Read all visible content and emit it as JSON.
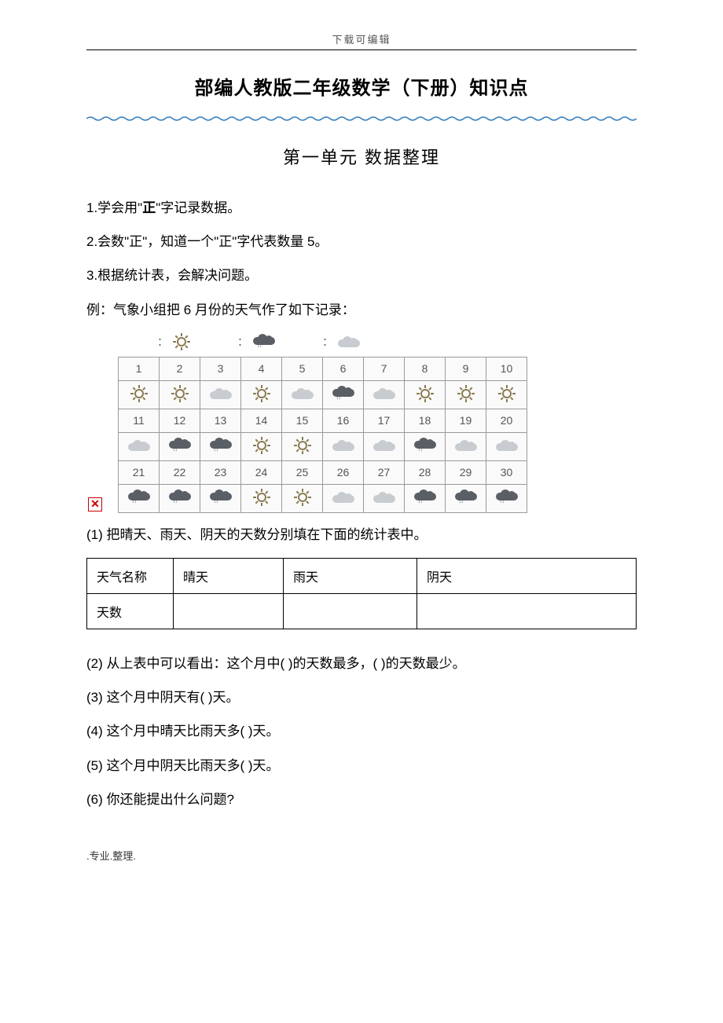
{
  "header": {
    "text": "下载可编辑"
  },
  "title": "部编人教版二年级数学（下册）知识点",
  "unit_title": "第一单元  数据整理",
  "points": {
    "p1_pre": "1.学会用\"",
    "p1_bold": "正",
    "p1_post": "\"字记录数据。",
    "p2": "2.会数\"正\"，知道一个\"正\"字代表数量 5。",
    "p3": "3.根据统计表，会解决问题。",
    "example": "例：气象小组把 6 月份的天气作了如下记录："
  },
  "legend": {
    "sunny": "：",
    "rainy": "：",
    "cloudy": "："
  },
  "calendar": {
    "days": [
      1,
      2,
      3,
      4,
      5,
      6,
      7,
      8,
      9,
      10,
      11,
      12,
      13,
      14,
      15,
      16,
      17,
      18,
      19,
      20,
      21,
      22,
      23,
      24,
      25,
      26,
      27,
      28,
      29,
      30
    ],
    "weather": [
      "sun",
      "sun",
      "cloud",
      "sun",
      "cloud",
      "rain",
      "cloud",
      "sun",
      "sun",
      "sun",
      "cloud",
      "rain",
      "rain",
      "sun",
      "sun",
      "cloud",
      "cloud",
      "rain",
      "cloud",
      "cloud",
      "rain",
      "rain",
      "rain",
      "sun",
      "sun",
      "cloud",
      "cloud",
      "rain",
      "rain",
      "rain"
    ]
  },
  "q1": "(1)  把晴天、雨天、阴天的天数分别填在下面的统计表中。",
  "stats_table": {
    "headers": [
      "天气名称",
      "晴天",
      "雨天",
      "阴天"
    ],
    "row_label": "天数"
  },
  "q2": "(2)  从上表中可以看出：这个月中(      )的天数最多，(      )的天数最少。",
  "q3": "(3)  这个月中阴天有(      )天。",
  "q4": "(4)  这个月中晴天比雨天多(      )天。",
  "q5": "(5)  这个月中阴天比雨天多(      )天。",
  "q6": "(6)  你还能提出什么问题?",
  "footer": ".专业.整理.",
  "colors": {
    "wave": "#3a7fbf",
    "text": "#000000"
  }
}
